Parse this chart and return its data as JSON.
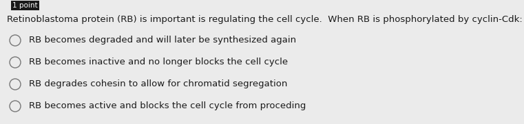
{
  "bg_color": "#ebebeb",
  "header_label": "1 point",
  "header_bg": "#1a1a1a",
  "question": "Retinoblastoma protein (RB) is important is regulating the cell cycle.  When RB is phosphorylated by cyclin-Cdk:",
  "options": [
    "RB becomes degraded and will later be synthesized again",
    "RB becomes inactive and no longer blocks the cell cycle",
    "RB degrades cohesin to allow for chromatid segregation",
    "RB becomes active and blocks the cell cycle from proceding"
  ],
  "header_fontsize": 7.5,
  "question_fontsize": 9.5,
  "option_fontsize": 9.5,
  "text_color": "#1a1a1a",
  "circle_color": "#777777",
  "fig_width": 7.61,
  "fig_height": 1.81,
  "dpi": 100
}
